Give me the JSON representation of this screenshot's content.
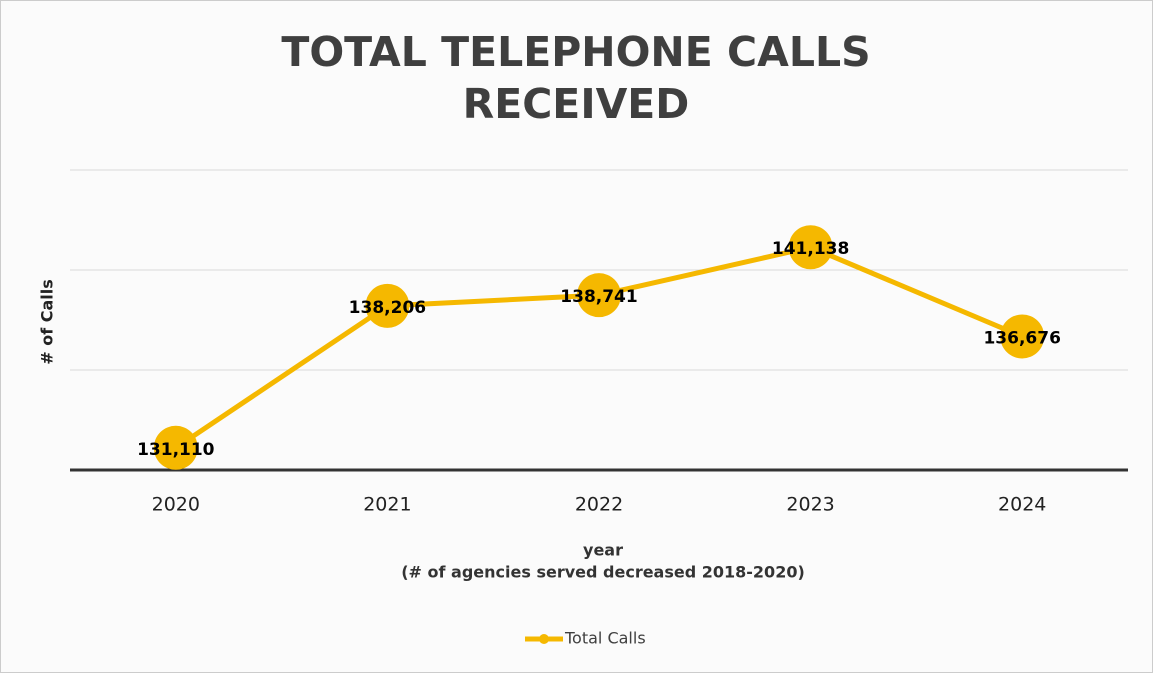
{
  "chart_data": {
    "type": "line",
    "title": "TOTAL TELEPHONE CALLS RECEIVED",
    "ylabel": "# of Calls",
    "xlabel": "year",
    "xlabel_note": "(# of agencies served decreased 2018-2020)",
    "categories": [
      "2020",
      "2021",
      "2022",
      "2023",
      "2024"
    ],
    "series": [
      {
        "name": "Total Calls",
        "color": "#f5b800",
        "values": [
          131110,
          138206,
          138741,
          141138,
          136676
        ],
        "value_labels": [
          "131,110",
          "138,206",
          "138,741",
          "141,138",
          "136,676"
        ]
      }
    ],
    "ylim": [
      130000,
      145000
    ],
    "yticks": [
      130000,
      135000,
      140000,
      145000
    ],
    "show_ytick_labels": false,
    "grid": true,
    "legend": "bottom"
  }
}
